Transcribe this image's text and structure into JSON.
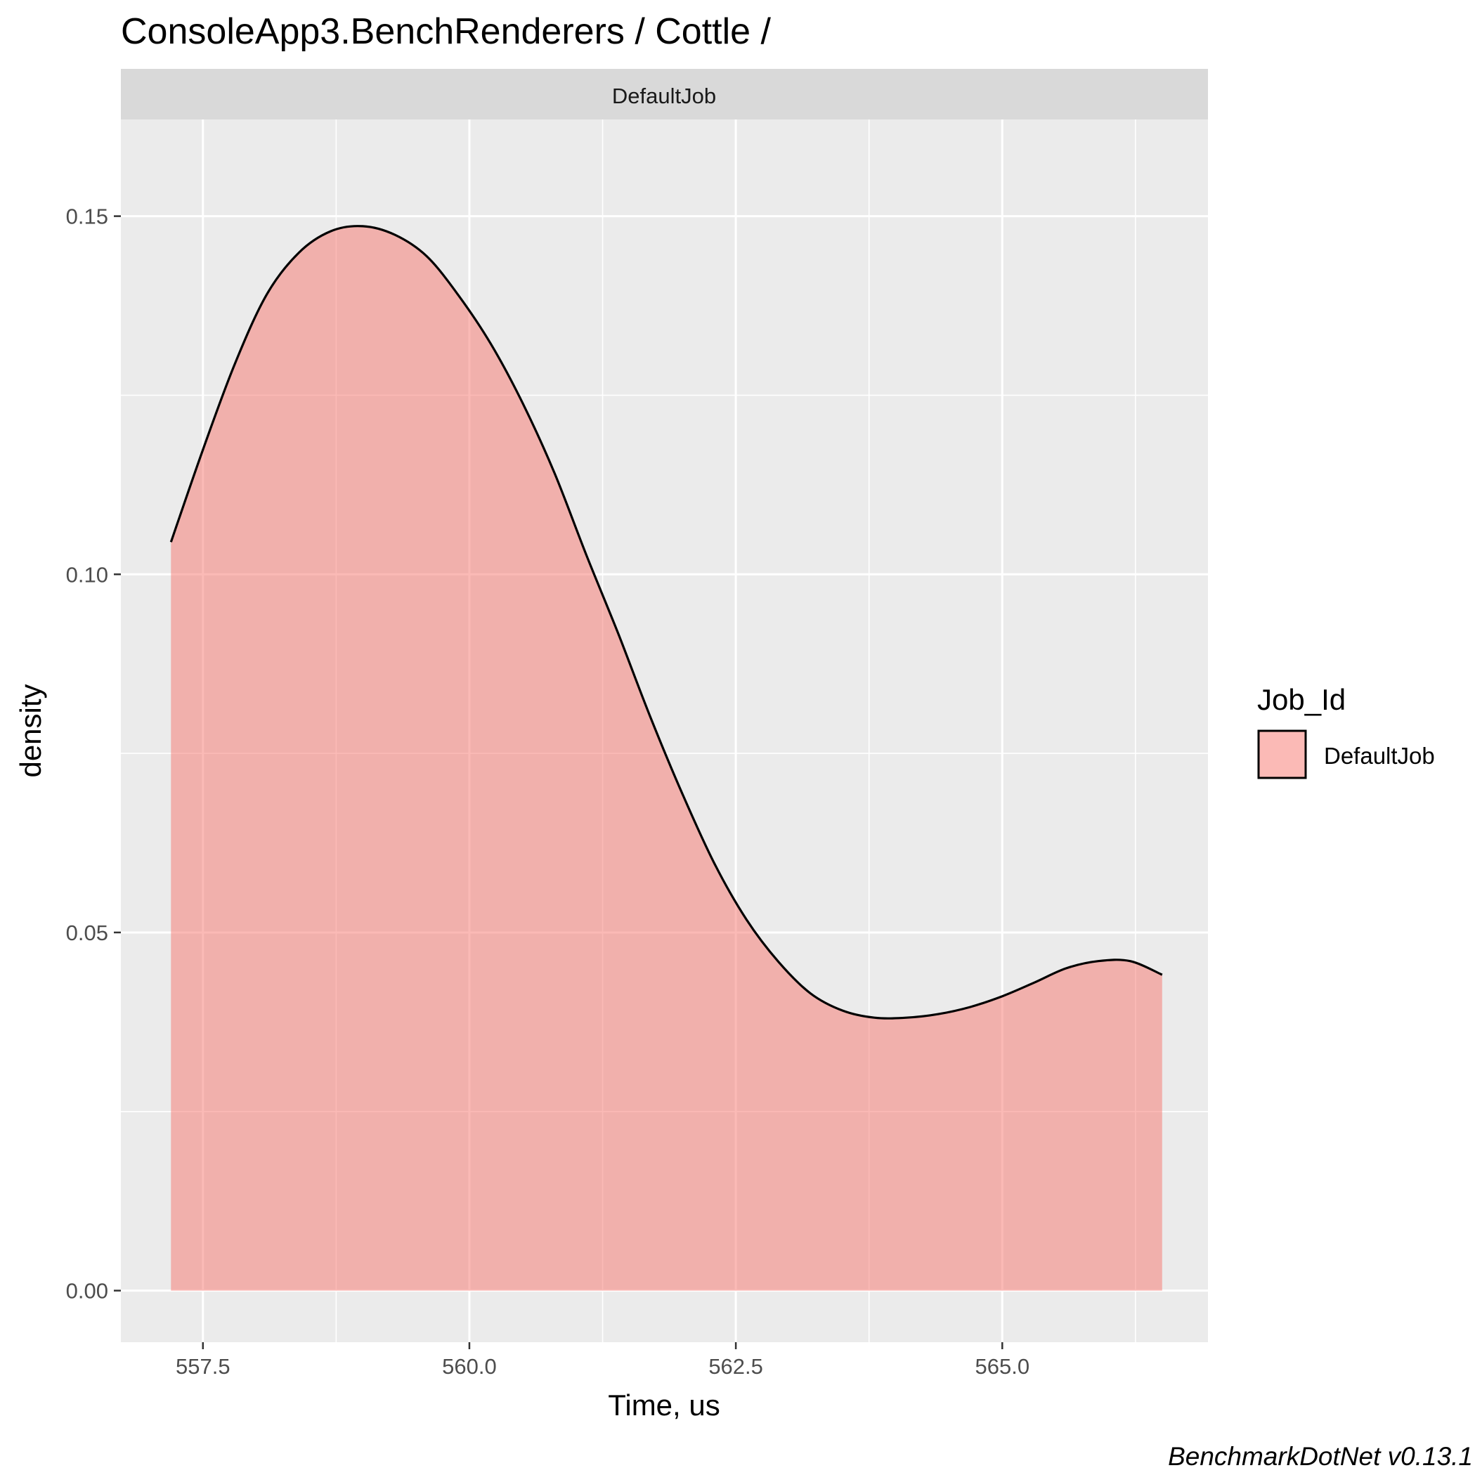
{
  "chart_data": {
    "type": "area",
    "title": "ConsoleApp3.BenchRenderers / Cottle /",
    "facet_label": "DefaultJob",
    "xlabel": "Time, us",
    "ylabel": "density",
    "caption": "BenchmarkDotNet v0.13.1",
    "xlim": [
      556.73,
      566.93
    ],
    "ylim": [
      -0.0072,
      0.1635
    ],
    "x_ticks": [
      557.5,
      560.0,
      562.5,
      565.0
    ],
    "x_tick_labels": [
      "557.5",
      "560.0",
      "562.5",
      "565.0"
    ],
    "y_ticks": [
      0.0,
      0.05,
      0.1,
      0.15
    ],
    "y_tick_labels": [
      "0.00",
      "0.05",
      "0.10",
      "0.15"
    ],
    "grid": true,
    "legend": {
      "title": "Job_Id",
      "position": "right",
      "entries": [
        "DefaultJob"
      ]
    },
    "series": [
      {
        "name": "DefaultJob",
        "fill_color": "#F8766D",
        "fill_opacity": 0.5,
        "line_color": "#000000",
        "x": [
          557.2,
          557.5,
          557.8,
          558.1,
          558.4,
          558.7,
          559.0,
          559.3,
          559.6,
          559.9,
          560.2,
          560.5,
          560.8,
          561.1,
          561.4,
          561.7,
          562.0,
          562.3,
          562.6,
          562.9,
          563.2,
          563.5,
          563.8,
          564.1,
          564.4,
          564.7,
          565.0,
          565.3,
          565.6,
          565.9,
          566.2,
          566.5
        ],
        "y": [
          0.1045,
          0.1174,
          0.1294,
          0.1391,
          0.1449,
          0.1479,
          0.1486,
          0.1474,
          0.1444,
          0.1389,
          0.1322,
          0.1239,
          0.1141,
          0.1026,
          0.0916,
          0.08,
          0.0693,
          0.0596,
          0.0518,
          0.0459,
          0.0415,
          0.0391,
          0.0381,
          0.0381,
          0.0386,
          0.0396,
          0.0411,
          0.043,
          0.045,
          0.046,
          0.046,
          0.0441
        ]
      }
    ]
  }
}
